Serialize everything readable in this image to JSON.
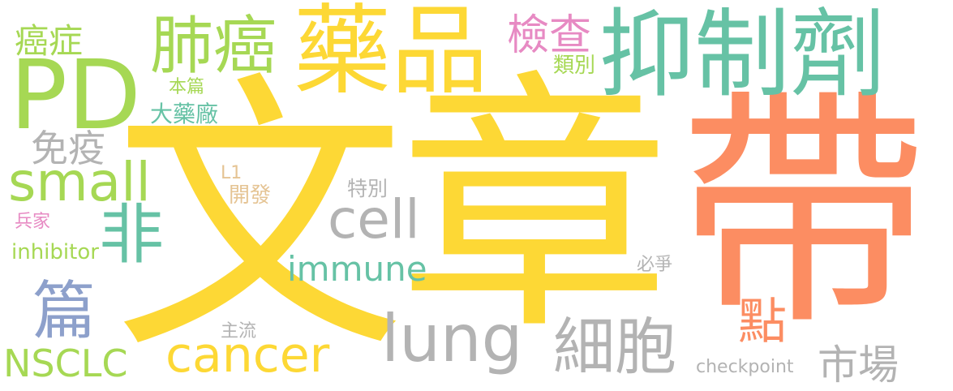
{
  "colors": {
    "yellow": "#fdd835",
    "orange": "#fc8d62",
    "green": "#66c2a5",
    "lime": "#a6d854",
    "gray": "#b3b3b3",
    "pink": "#e78ac3",
    "blue": "#8da0cb",
    "tan": "#e5c494"
  },
  "words": [
    {
      "text": "文"
    },
    {
      "text": "章"
    },
    {
      "text": "帶"
    },
    {
      "text": "藥品"
    },
    {
      "text": "抑制劑"
    },
    {
      "text": "PD"
    },
    {
      "text": "肺癌"
    },
    {
      "text": "癌症"
    },
    {
      "text": "檢查"
    },
    {
      "text": "類別"
    },
    {
      "text": "本篇"
    },
    {
      "text": "大藥廠"
    },
    {
      "text": "免疫"
    },
    {
      "text": "small"
    },
    {
      "text": "非"
    },
    {
      "text": "L1"
    },
    {
      "text": "開發"
    },
    {
      "text": "特別"
    },
    {
      "text": "cell"
    },
    {
      "text": "兵家"
    },
    {
      "text": "inhibitor"
    },
    {
      "text": "immune"
    },
    {
      "text": "必爭"
    },
    {
      "text": "篇"
    },
    {
      "text": "點"
    },
    {
      "text": "lung"
    },
    {
      "text": "主流"
    },
    {
      "text": "細胞"
    },
    {
      "text": "NSCLC"
    },
    {
      "text": "cancer"
    },
    {
      "text": "checkpoint"
    },
    {
      "text": "市場"
    }
  ]
}
